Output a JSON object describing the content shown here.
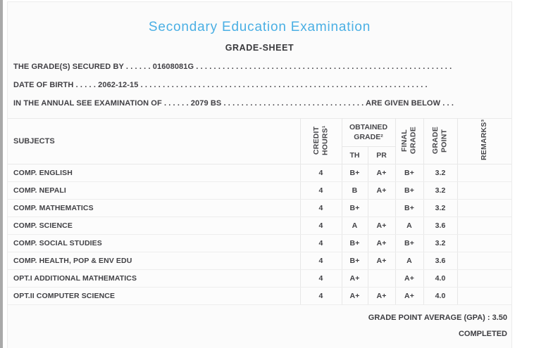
{
  "page": {
    "title": "Secondary Education Examination",
    "subtitle": "GRADE-SHEET",
    "accent_color": "#4aafe4",
    "text_color": "#403f44",
    "border_color": "#e9e9e9",
    "sheet_background": "#fbfbfb"
  },
  "info_lines": [
    {
      "text": "THE GRADE(S) SECURED BY . . . . . . 01608081G . . . . . . . . . . . . . . . . . . . . . . . . . . . . . . . . . . . . . . . . . . . . . . . . . . . . . . . . . ."
    },
    {
      "text": "DATE OF BIRTH . . . . . 2062-12-15 . . . . . . . . . . . . . . . . . . . . . . . . . . . . . . . . . . . . . . . . . . . . . . . . . . . . . . . . . . . . . . . . ."
    },
    {
      "text": "IN THE ANNUAL SEE EXAMINATION OF . . . . . . 2079 BS . . . . . . . . . . . . . . . . . . . . . . . . . . . . . . . . ARE GIVEN BELOW . . ."
    }
  ],
  "table": {
    "headers": {
      "subjects": "SUBJECTS",
      "credit_hours": "CREDIT HOURS¹",
      "obtained_grade": "OBTAINED GRADE²",
      "th": "TH",
      "pr": "PR",
      "final_grade": "FINAL GRADE",
      "grade_point": "GRADE POINT",
      "remarks": "REMARKS³"
    },
    "rows": [
      {
        "subject": "COMP. ENGLISH",
        "credit": "4",
        "th": "B+",
        "pr": "A+",
        "final": "B+",
        "gp": "3.2",
        "remarks": ""
      },
      {
        "subject": "COMP. NEPALI",
        "credit": "4",
        "th": "B",
        "pr": "A+",
        "final": "B+",
        "gp": "3.2",
        "remarks": ""
      },
      {
        "subject": "COMP. MATHEMATICS",
        "credit": "4",
        "th": "B+",
        "pr": "",
        "final": "B+",
        "gp": "3.2",
        "remarks": ""
      },
      {
        "subject": "COMP. SCIENCE",
        "credit": "4",
        "th": "A",
        "pr": "A+",
        "final": "A",
        "gp": "3.6",
        "remarks": ""
      },
      {
        "subject": "COMP. SOCIAL STUDIES",
        "credit": "4",
        "th": "B+",
        "pr": "A+",
        "final": "B+",
        "gp": "3.2",
        "remarks": ""
      },
      {
        "subject": "COMP. HEALTH, POP & ENV EDU",
        "credit": "4",
        "th": "B+",
        "pr": "A+",
        "final": "A",
        "gp": "3.6",
        "remarks": ""
      },
      {
        "subject": "OPT.I ADDITIONAL MATHEMATICS",
        "credit": "4",
        "th": "A+",
        "pr": "",
        "final": "A+",
        "gp": "4.0",
        "remarks": ""
      },
      {
        "subject": "OPT.II COMPUTER SCIENCE",
        "credit": "4",
        "th": "A+",
        "pr": "A+",
        "final": "A+",
        "gp": "4.0",
        "remarks": ""
      }
    ]
  },
  "footer": {
    "gpa_text": "GRADE POINT AVERAGE (GPA) : 3.50",
    "status_text": "COMPLETED"
  }
}
